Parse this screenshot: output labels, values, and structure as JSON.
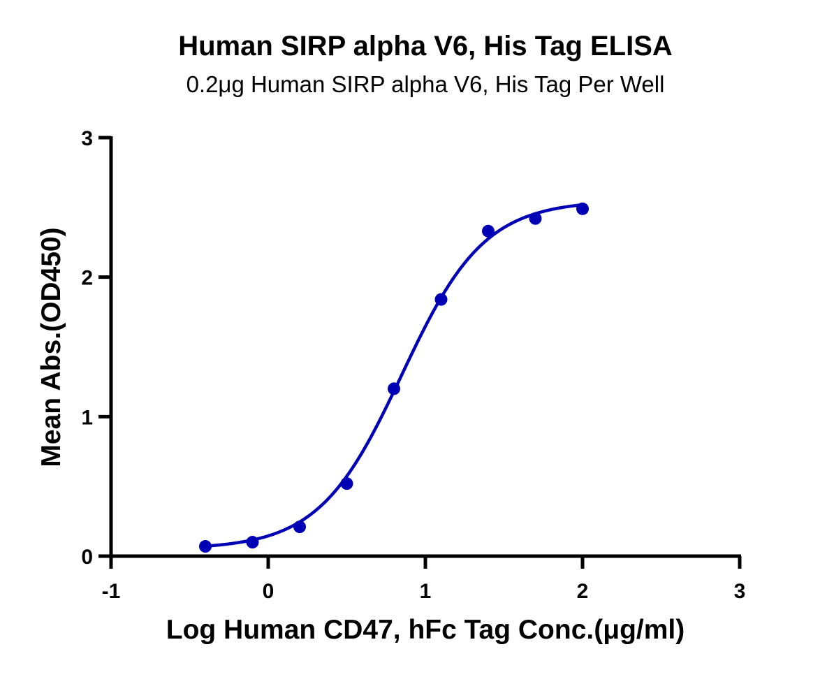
{
  "chart_data": {
    "type": "scatter",
    "title": "Human SIRP alpha V6, His Tag ELISA",
    "subtitle": "0.2μg Human SIRP alpha V6, His Tag Per Well",
    "xlabel": "Log Human CD47, hFc Tag Conc.(μg/ml)",
    "ylabel": "Mean Abs.(OD450)",
    "xlim": [
      -1,
      3
    ],
    "ylim": [
      0,
      3
    ],
    "x_ticks": [
      "-1",
      "0",
      "1",
      "2",
      "3"
    ],
    "y_ticks": [
      "0",
      "1",
      "2",
      "3"
    ],
    "grid": false,
    "legend": null,
    "series": [
      {
        "name": "Human SIRP alpha V6, His Tag",
        "color": "#0000b4",
        "marker": "circle",
        "fit": "4PL sigmoidal curve",
        "x": [
          -0.4,
          -0.1,
          0.2,
          0.5,
          0.8,
          1.1,
          1.4,
          1.7,
          2.0
        ],
        "y": [
          0.07,
          0.1,
          0.21,
          0.52,
          1.2,
          1.84,
          2.33,
          2.42,
          2.49
        ]
      }
    ]
  }
}
